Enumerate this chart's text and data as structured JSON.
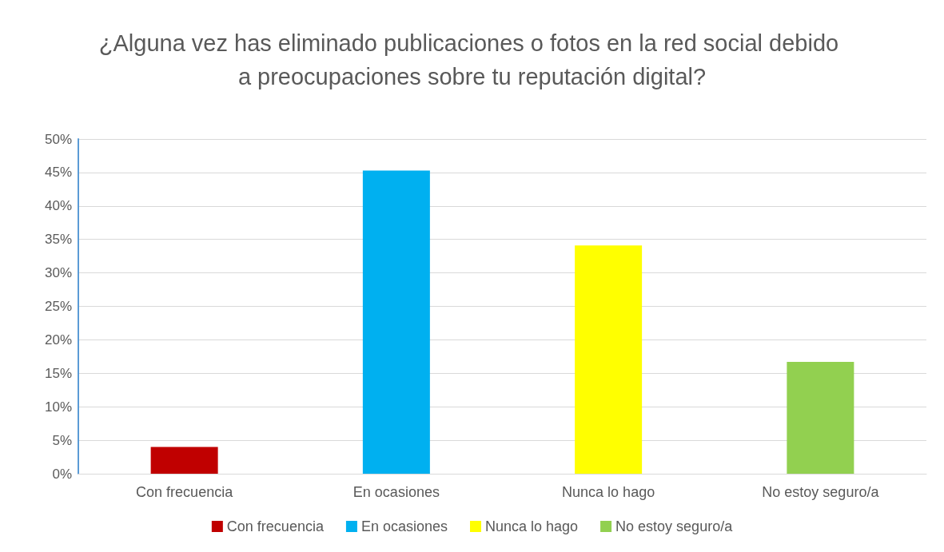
{
  "chart_data": {
    "type": "bar",
    "title": "¿Alguna vez has eliminado publicaciones o fotos en la red social debido a preocupaciones sobre tu reputación digital?",
    "categories": [
      "Con frecuencia",
      "En ocasiones",
      "Nunca lo hago",
      "No estoy seguro/a"
    ],
    "series": [
      {
        "name": "Con frecuencia",
        "color": "#c00000",
        "values": [
          4,
          null,
          null,
          null
        ]
      },
      {
        "name": "En ocasiones",
        "color": "#00b0f0",
        "values": [
          null,
          45.3,
          null,
          null
        ]
      },
      {
        "name": "Nunca lo hago",
        "color": "#ffff00",
        "values": [
          null,
          null,
          34.1,
          null
        ]
      },
      {
        "name": "No estoy seguro/a",
        "color": "#92d050",
        "values": [
          null,
          null,
          null,
          16.7
        ]
      }
    ],
    "ylim": [
      0,
      50
    ],
    "yticks": [
      {
        "value": 0,
        "label": "0%"
      },
      {
        "value": 5,
        "label": "5%"
      },
      {
        "value": 10,
        "label": "10%"
      },
      {
        "value": 15,
        "label": "15%"
      },
      {
        "value": 20,
        "label": "20%"
      },
      {
        "value": 25,
        "label": "25%"
      },
      {
        "value": 30,
        "label": "30%"
      },
      {
        "value": 35,
        "label": "35%"
      },
      {
        "value": 40,
        "label": "40%"
      },
      {
        "value": 45,
        "label": "45%"
      },
      {
        "value": 50,
        "label": "50%"
      }
    ],
    "grid": "y",
    "legend": "bottom"
  }
}
